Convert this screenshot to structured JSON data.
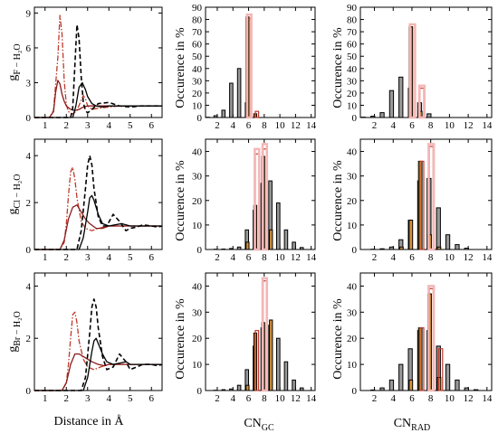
{
  "figure": {
    "rdf_xlabel": "Distance in Å",
    "hist_ylabel": "Occurence in %",
    "cn_gc_label": "CN",
    "cn_gc_sub": "GC",
    "cn_rad_label": "CN",
    "cn_rad_sub": "RAD"
  },
  "colors": {
    "black": "#000000",
    "red": "#c0392b",
    "dark_red": "#8b1a1a",
    "orange": "#d4913a",
    "pink": "#f4b6b6",
    "gray": "#999999"
  },
  "chart_data": [
    {
      "id": "rdf-F",
      "type": "line",
      "ylabel_main": "g",
      "ylabel_sub": "F − H₂O",
      "xlim": [
        0.5,
        6.5
      ],
      "ylim": [
        0,
        9.5
      ],
      "xticks": [
        1,
        2,
        3,
        4,
        5,
        6
      ],
      "yticks": [
        0,
        3,
        6,
        9
      ],
      "series": [
        {
          "style": "red-dashdot",
          "x": [
            0.5,
            1.2,
            1.4,
            1.6,
            1.7,
            1.8,
            1.9,
            2.0,
            2.1,
            2.3,
            2.5,
            2.7,
            2.8,
            2.9,
            3.0,
            3.2,
            3.5,
            4.0,
            4.5,
            5.0,
            5.5,
            6.0,
            6.5
          ],
          "y": [
            0,
            0,
            0.6,
            5.2,
            8.8,
            7.2,
            3.2,
            1.1,
            0.5,
            0.3,
            0.6,
            1.5,
            1.9,
            1.6,
            1.0,
            0.7,
            0.8,
            0.9,
            1.0,
            1.0,
            1.0,
            1.0,
            1.0
          ]
        },
        {
          "style": "red-solid",
          "x": [
            0.5,
            1.2,
            1.4,
            1.5,
            1.6,
            1.7,
            1.8,
            1.9,
            2.0,
            2.2,
            2.4,
            2.6,
            2.8,
            3.0,
            3.5,
            4.0,
            4.5,
            5.0,
            5.5,
            6.0,
            6.5
          ],
          "y": [
            0,
            0,
            0.5,
            2.2,
            3.2,
            2.9,
            2.0,
            1.4,
            1.0,
            0.7,
            0.6,
            0.7,
            0.9,
            1.0,
            1.0,
            1.0,
            1.0,
            1.0,
            1.0,
            1.0,
            1.0
          ]
        },
        {
          "style": "black-dashed",
          "x": [
            0.5,
            2.2,
            2.3,
            2.4,
            2.5,
            2.6,
            2.7,
            2.8,
            2.9,
            3.0,
            3.2,
            3.5,
            4.0,
            4.5,
            5.0,
            5.5,
            6.0,
            6.5
          ],
          "y": [
            0,
            0,
            0.8,
            4.5,
            8.0,
            6.8,
            3.5,
            1.3,
            0.6,
            0.4,
            0.7,
            1.2,
            1.3,
            1.0,
            0.9,
            1.0,
            1.0,
            1.0
          ]
        },
        {
          "style": "black-solid",
          "x": [
            0.5,
            2.3,
            2.45,
            2.6,
            2.75,
            2.9,
            3.0,
            3.2,
            3.4,
            3.7,
            4.0,
            4.5,
            5.0,
            5.5,
            6.0,
            6.5
          ],
          "y": [
            0,
            0,
            1.0,
            2.6,
            3.0,
            2.4,
            1.8,
            1.2,
            1.0,
            0.9,
            1.0,
            1.0,
            1.0,
            1.0,
            1.0,
            1.0
          ]
        }
      ]
    },
    {
      "id": "rdf-Cl",
      "type": "line",
      "ylabel_main": "g",
      "ylabel_sub": "Cl − H₂O",
      "xlim": [
        0.5,
        6.5
      ],
      "ylim": [
        0,
        4.7
      ],
      "xticks": [
        1,
        2,
        3,
        4,
        5,
        6
      ],
      "yticks": [
        0,
        2,
        4
      ],
      "series": [
        {
          "style": "red-dashdot",
          "x": [
            0.5,
            1.7,
            1.9,
            2.0,
            2.1,
            2.2,
            2.3,
            2.4,
            2.5,
            2.7,
            2.9,
            3.2,
            3.5,
            4.0,
            4.5,
            5.0,
            5.5,
            6.0,
            6.5
          ],
          "y": [
            0,
            0,
            0.3,
            1.1,
            2.3,
            3.3,
            3.5,
            3.0,
            2.2,
            1.2,
            0.9,
            0.8,
            0.9,
            1.0,
            1.0,
            1.0,
            1.0,
            1.0,
            1.0
          ]
        },
        {
          "style": "red-solid",
          "x": [
            0.5,
            1.7,
            1.9,
            2.1,
            2.3,
            2.5,
            2.7,
            2.9,
            3.1,
            3.4,
            3.7,
            4.0,
            4.5,
            5.0,
            5.5,
            6.0,
            6.5
          ],
          "y": [
            0,
            0,
            0.4,
            1.3,
            1.8,
            1.9,
            1.6,
            1.3,
            1.1,
            0.9,
            0.9,
            1.0,
            1.0,
            1.0,
            1.0,
            1.0,
            1.0
          ]
        },
        {
          "style": "black-dashed",
          "x": [
            0.5,
            2.5,
            2.7,
            2.9,
            3.0,
            3.1,
            3.2,
            3.3,
            3.5,
            3.7,
            3.9,
            4.2,
            4.5,
            4.8,
            5.0,
            5.3,
            5.6,
            6.0,
            6.3,
            6.5
          ],
          "y": [
            0,
            0,
            0.8,
            2.6,
            3.6,
            4.0,
            3.6,
            2.6,
            1.4,
            1.0,
            1.0,
            1.5,
            1.2,
            0.8,
            0.9,
            0.95,
            1.05,
            1.0,
            0.95,
            1.0
          ]
        },
        {
          "style": "black-solid",
          "x": [
            0.5,
            2.6,
            2.8,
            3.0,
            3.1,
            3.2,
            3.3,
            3.5,
            3.7,
            4.0,
            4.3,
            4.6,
            5.0,
            5.5,
            6.0,
            6.5
          ],
          "y": [
            0,
            0,
            0.5,
            1.6,
            2.2,
            2.3,
            2.1,
            1.5,
            1.1,
            1.0,
            1.05,
            1.1,
            1.0,
            1.0,
            1.0,
            1.0
          ]
        }
      ]
    },
    {
      "id": "rdf-Br",
      "type": "line",
      "ylabel_main": "g",
      "ylabel_sub": "Br − H₂O",
      "xlim": [
        0.5,
        6.5
      ],
      "ylim": [
        0,
        4.5
      ],
      "xticks": [
        1,
        2,
        3,
        4,
        5,
        6
      ],
      "yticks": [
        0,
        2,
        4
      ],
      "series": [
        {
          "style": "red-dashdot",
          "x": [
            0.5,
            1.8,
            2.0,
            2.1,
            2.2,
            2.3,
            2.4,
            2.5,
            2.6,
            2.8,
            3.0,
            3.3,
            3.6,
            4.0,
            4.5,
            5.0,
            5.5,
            6.0,
            6.5
          ],
          "y": [
            0,
            0,
            0.3,
            1.0,
            2.0,
            2.9,
            3.0,
            2.6,
            1.9,
            1.2,
            0.9,
            0.8,
            0.9,
            1.0,
            1.0,
            1.0,
            1.0,
            1.0,
            1.0
          ]
        },
        {
          "style": "red-solid",
          "x": [
            0.5,
            1.8,
            2.0,
            2.2,
            2.4,
            2.6,
            2.8,
            3.0,
            3.2,
            3.5,
            3.8,
            4.0,
            4.5,
            5.0,
            5.5,
            6.0,
            6.5
          ],
          "y": [
            0,
            0,
            0.3,
            1.0,
            1.4,
            1.4,
            1.3,
            1.2,
            1.1,
            1.0,
            0.95,
            1.0,
            1.0,
            1.0,
            1.0,
            1.0,
            1.0
          ]
        },
        {
          "style": "black-dashed",
          "x": [
            0.5,
            2.7,
            2.9,
            3.1,
            3.2,
            3.3,
            3.4,
            3.5,
            3.7,
            3.9,
            4.2,
            4.5,
            4.8,
            5.0,
            5.3,
            5.6,
            6.0,
            6.3,
            6.5
          ],
          "y": [
            0,
            0,
            0.5,
            2.2,
            3.2,
            3.5,
            3.2,
            2.4,
            1.3,
            0.8,
            0.9,
            1.4,
            1.1,
            0.8,
            0.9,
            1.0,
            1.0,
            0.95,
            1.0
          ]
        },
        {
          "style": "black-solid",
          "x": [
            0.5,
            2.8,
            3.0,
            3.2,
            3.3,
            3.4,
            3.5,
            3.7,
            3.9,
            4.2,
            4.5,
            4.8,
            5.0,
            5.5,
            6.0,
            6.5
          ],
          "y": [
            0,
            0,
            0.5,
            1.5,
            1.9,
            2.0,
            1.8,
            1.4,
            1.1,
            1.0,
            1.05,
            1.1,
            1.0,
            1.0,
            1.0,
            1.0
          ]
        }
      ]
    },
    {
      "id": "hist-F-gc",
      "type": "bar",
      "xlim": [
        0.5,
        14.5
      ],
      "ylim": [
        0,
        90
      ],
      "yticks": [
        0,
        10,
        20,
        30,
        40,
        50,
        60,
        70,
        80,
        90
      ],
      "xticks": [
        2,
        4,
        6,
        8,
        10,
        12,
        14
      ],
      "series": [
        {
          "style": "gray",
          "x": [
            1,
            2,
            3,
            4,
            5,
            6
          ],
          "y": [
            0.2,
            1.5,
            6,
            28,
            40,
            12
          ]
        },
        {
          "style": "orange",
          "x": [
            6,
            7
          ],
          "y": [
            82,
            3
          ]
        },
        {
          "style": "red",
          "x": [
            6,
            7
          ],
          "y": [
            81,
            5
          ]
        },
        {
          "style": "pink",
          "x": [
            6
          ],
          "y": [
            84
          ]
        }
      ]
    },
    {
      "id": "hist-F-rad",
      "type": "bar",
      "xlim": [
        0.5,
        14.5
      ],
      "ylim": [
        0,
        90
      ],
      "yticks": [
        0,
        10,
        20,
        30,
        40,
        50,
        60,
        70,
        80,
        90
      ],
      "xticks": [
        2,
        4,
        6,
        8,
        10,
        12,
        14
      ],
      "series": [
        {
          "style": "gray",
          "x": [
            1,
            2,
            3,
            4,
            5,
            6,
            7,
            8
          ],
          "y": [
            0.3,
            1,
            4,
            22,
            33,
            24,
            12,
            3
          ]
        },
        {
          "style": "orange",
          "x": [
            6,
            7
          ],
          "y": [
            74,
            5
          ]
        },
        {
          "style": "red",
          "x": [
            7
          ],
          "y": [
            24
          ]
        },
        {
          "style": "pink",
          "x": [
            6,
            7
          ],
          "y": [
            76,
            26
          ]
        }
      ]
    },
    {
      "id": "hist-Cl-gc",
      "type": "bar",
      "xlim": [
        0.5,
        14.5
      ],
      "ylim": [
        0,
        45
      ],
      "yticks": [
        0,
        10,
        20,
        30,
        40
      ],
      "xticks": [
        2,
        4,
        6,
        8,
        10,
        12,
        14
      ],
      "series": [
        {
          "style": "gray",
          "x": [
            2,
            3,
            4,
            5,
            6,
            7,
            8,
            9,
            10,
            11,
            12,
            13
          ],
          "y": [
            0.1,
            0.2,
            0.4,
            1,
            8,
            16,
            27,
            28,
            19,
            8,
            3,
            0.8
          ]
        },
        {
          "style": "orange",
          "x": [
            6,
            7,
            8,
            9
          ],
          "y": [
            3,
            18,
            38,
            8
          ]
        },
        {
          "style": "red",
          "x": [
            7,
            8
          ],
          "y": [
            39,
            41
          ]
        },
        {
          "style": "pink",
          "x": [
            7,
            8
          ],
          "y": [
            41,
            43
          ]
        }
      ]
    },
    {
      "id": "hist-Cl-rad",
      "type": "bar",
      "xlim": [
        0.5,
        14.5
      ],
      "ylim": [
        0,
        45
      ],
      "yticks": [
        0,
        10,
        20,
        30,
        40
      ],
      "xticks": [
        2,
        4,
        6,
        8,
        10,
        12,
        14
      ],
      "series": [
        {
          "style": "gray",
          "x": [
            2,
            3,
            4,
            5,
            6,
            7,
            8,
            9,
            10,
            11,
            12
          ],
          "y": [
            0.1,
            0.3,
            1,
            4,
            12,
            28,
            29,
            17,
            6,
            2,
            0.5
          ]
        },
        {
          "style": "orange",
          "x": [
            5,
            6,
            7,
            8,
            9
          ],
          "y": [
            1,
            12,
            36,
            6,
            1
          ]
        },
        {
          "style": "red",
          "x": [
            7,
            8
          ],
          "y": [
            36,
            42
          ]
        },
        {
          "style": "pink",
          "x": [
            8
          ],
          "y": [
            43
          ]
        }
      ]
    },
    {
      "id": "hist-Br-gc",
      "type": "bar",
      "xlim": [
        0.5,
        14.5
      ],
      "ylim": [
        0,
        45
      ],
      "yticks": [
        0,
        10,
        20,
        30,
        40
      ],
      "xticks": [
        2,
        4,
        6,
        8,
        10,
        12,
        14
      ],
      "series": [
        {
          "style": "gray",
          "x": [
            2,
            3,
            4,
            5,
            6,
            7,
            8,
            9,
            10,
            11,
            12,
            13
          ],
          "y": [
            0.1,
            0.3,
            0.6,
            2,
            8,
            17,
            24,
            25,
            20,
            11,
            4,
            1
          ]
        },
        {
          "style": "orange",
          "x": [
            6,
            7,
            8,
            9
          ],
          "y": [
            2,
            22,
            26,
            27
          ]
        },
        {
          "style": "red",
          "x": [
            7,
            8
          ],
          "y": [
            23,
            42
          ]
        },
        {
          "style": "pink",
          "x": [
            8
          ],
          "y": [
            43
          ]
        }
      ]
    },
    {
      "id": "hist-Br-rad",
      "type": "bar",
      "xlim": [
        0.5,
        14.5
      ],
      "ylim": [
        0,
        45
      ],
      "yticks": [
        0,
        10,
        20,
        30,
        40
      ],
      "xticks": [
        2,
        4,
        6,
        8,
        10,
        12,
        14
      ],
      "series": [
        {
          "style": "gray",
          "x": [
            2,
            3,
            4,
            5,
            6,
            7,
            8,
            9,
            10,
            11,
            12,
            13
          ],
          "y": [
            0.2,
            1,
            4,
            10,
            16,
            23,
            23,
            17,
            10,
            4,
            1,
            0.3
          ]
        },
        {
          "style": "orange",
          "x": [
            6,
            7,
            8,
            9
          ],
          "y": [
            4,
            24,
            37,
            5
          ]
        },
        {
          "style": "red",
          "x": [
            7,
            8,
            9
          ],
          "y": [
            24,
            39,
            16
          ]
        },
        {
          "style": "pink",
          "x": [
            8
          ],
          "y": [
            40
          ]
        }
      ]
    }
  ]
}
